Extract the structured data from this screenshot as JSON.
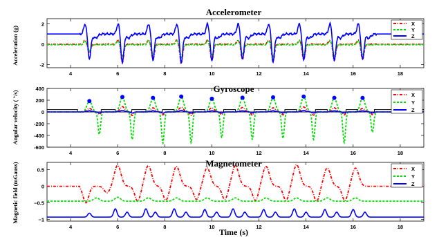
{
  "colors": {
    "x": "#ff0000",
    "y": "#00dd00",
    "z": "#0000ff",
    "axis": "#000000",
    "step": "#000000",
    "marker": "#0000ff"
  },
  "xlabel": "Time (s)",
  "chart_data": [
    {
      "type": "line",
      "title": "Accelerometer",
      "ylabel": "Acceleration (g)",
      "xlim": [
        3.0,
        19.0
      ],
      "ylim": [
        -2.3,
        2.5
      ],
      "xticks": [
        4,
        6,
        8,
        10,
        12,
        14,
        16,
        18
      ],
      "yticks": [
        -2,
        0,
        2
      ],
      "ytick_labels": [
        "-2",
        "0",
        "2"
      ],
      "legend": "top-right",
      "series": [
        {
          "name": "X",
          "style": "dash-dot",
          "baseline": 0.0,
          "active_range": [
            4.4,
            17.0
          ],
          "events": [
            {
              "t": 4.8,
              "d": -0.9
            },
            {
              "t": 6.2,
              "d": -1.8
            },
            {
              "t": 7.5,
              "d": -1.5
            },
            {
              "t": 8.7,
              "d": -1.8
            },
            {
              "t": 10.0,
              "d": -1.6
            },
            {
              "t": 11.3,
              "d": -1.5
            },
            {
              "t": 12.6,
              "d": -1.7
            },
            {
              "t": 13.9,
              "d": -1.5
            },
            {
              "t": 15.2,
              "d": -1.6
            },
            {
              "t": 16.4,
              "d": -1.5
            }
          ]
        },
        {
          "name": "Y",
          "style": "dashed",
          "baseline": -0.05,
          "active_range": [
            4.4,
            17.0
          ],
          "events": [
            {
              "t": 4.8,
              "d": -0.6
            },
            {
              "t": 6.2,
              "d": -1.2
            },
            {
              "t": 7.5,
              "d": -1.0
            },
            {
              "t": 8.7,
              "d": -1.2
            },
            {
              "t": 10.0,
              "d": -1.1
            },
            {
              "t": 11.3,
              "d": -1.0
            },
            {
              "t": 12.6,
              "d": -1.1
            },
            {
              "t": 13.9,
              "d": -1.0
            },
            {
              "t": 15.2,
              "d": -1.1
            },
            {
              "t": 16.4,
              "d": -1.0
            }
          ]
        },
        {
          "name": "Z",
          "style": "solid",
          "baseline": 1.0,
          "active_range": [
            4.4,
            17.0
          ],
          "events": [
            {
              "t": 4.8,
              "d": -2.4
            },
            {
              "t": 6.2,
              "d": -2.8
            },
            {
              "t": 7.5,
              "d": -2.5
            },
            {
              "t": 8.7,
              "d": -2.8
            },
            {
              "t": 10.0,
              "d": -2.6
            },
            {
              "t": 11.3,
              "d": -2.5
            },
            {
              "t": 12.6,
              "d": -2.7
            },
            {
              "t": 13.9,
              "d": -2.5
            },
            {
              "t": 15.2,
              "d": -2.6
            },
            {
              "t": 16.4,
              "d": -2.5
            }
          ]
        }
      ]
    },
    {
      "type": "line",
      "title": "Gyroscope",
      "ylabel": "Angular velocity ( °/s)",
      "xlim": [
        3.0,
        19.0
      ],
      "ylim": [
        -600,
        400
      ],
      "xticks": [
        4,
        6,
        8,
        10,
        12,
        14,
        16,
        18
      ],
      "yticks": [
        -600,
        -400,
        -200,
        0,
        200,
        400
      ],
      "ytick_labels": [
        "-600",
        "-400",
        "-200",
        "0",
        "200",
        "400"
      ],
      "legend": "top-right",
      "stance_step": {
        "baseline": 0,
        "high": 40,
        "intervals": [
          [
            3.0,
            4.3
          ],
          [
            5.3,
            5.9
          ],
          [
            6.6,
            7.2
          ],
          [
            7.9,
            8.4
          ],
          [
            9.2,
            9.7
          ],
          [
            10.5,
            11.0
          ],
          [
            11.8,
            12.3
          ],
          [
            13.1,
            13.6
          ],
          [
            14.4,
            14.9
          ],
          [
            15.7,
            16.2
          ],
          [
            16.9,
            19.0
          ]
        ]
      },
      "peak_markers": {
        "x": [
          4.8,
          6.2,
          7.5,
          8.7,
          10.0,
          11.3,
          12.6,
          13.9,
          15.2,
          16.4
        ],
        "y": [
          185,
          255,
          240,
          262,
          225,
          242,
          248,
          262,
          240,
          238
        ]
      },
      "series": [
        {
          "name": "X",
          "style": "dash-dot",
          "baseline": 0,
          "active_range": [
            4.4,
            17.0
          ],
          "events": [
            {
              "t": 4.8,
              "up": 60,
              "dn": -40
            },
            {
              "t": 6.2,
              "up": 90,
              "dn": -60
            },
            {
              "t": 7.5,
              "up": 70,
              "dn": -50
            },
            {
              "t": 8.7,
              "up": 80,
              "dn": -60
            },
            {
              "t": 10.0,
              "up": 70,
              "dn": -50
            },
            {
              "t": 11.3,
              "up": 75,
              "dn": -55
            },
            {
              "t": 12.6,
              "up": 70,
              "dn": -50
            },
            {
              "t": 13.9,
              "up": 85,
              "dn": -55
            },
            {
              "t": 15.2,
              "up": 70,
              "dn": -50
            },
            {
              "t": 16.4,
              "up": 60,
              "dn": -45
            }
          ]
        },
        {
          "name": "Y",
          "style": "dashed",
          "baseline": 0,
          "active_range": [
            4.4,
            17.0
          ],
          "events": [
            {
              "t": 4.8,
              "up": 190,
              "dn": -380
            },
            {
              "t": 6.2,
              "up": 260,
              "dn": -470
            },
            {
              "t": 7.5,
              "up": 240,
              "dn": -530
            },
            {
              "t": 8.7,
              "up": 265,
              "dn": -520
            },
            {
              "t": 10.0,
              "up": 225,
              "dn": -440
            },
            {
              "t": 11.3,
              "up": 242,
              "dn": -470
            },
            {
              "t": 12.6,
              "up": 250,
              "dn": -450
            },
            {
              "t": 13.9,
              "up": 265,
              "dn": -470
            },
            {
              "t": 15.2,
              "up": 240,
              "dn": -520
            },
            {
              "t": 16.4,
              "up": 240,
              "dn": -350
            }
          ]
        },
        {
          "name": "Z",
          "style": "solid",
          "baseline": 0,
          "active_range": [
            4.4,
            17.0
          ],
          "events": [
            {
              "t": 4.8,
              "up": 20,
              "dn": -20
            },
            {
              "t": 6.2,
              "up": 25,
              "dn": -20
            },
            {
              "t": 7.5,
              "up": 20,
              "dn": -20
            },
            {
              "t": 8.7,
              "up": 25,
              "dn": -20
            },
            {
              "t": 10.0,
              "up": 20,
              "dn": -20
            },
            {
              "t": 11.3,
              "up": 20,
              "dn": -20
            },
            {
              "t": 12.6,
              "up": 20,
              "dn": -20
            },
            {
              "t": 13.9,
              "up": 25,
              "dn": -20
            },
            {
              "t": 15.2,
              "up": 20,
              "dn": -20
            },
            {
              "t": 16.4,
              "up": 20,
              "dn": -20
            }
          ]
        }
      ]
    },
    {
      "type": "line",
      "title": "Magnetometer",
      "ylabel": "Magnetic field (mGauss)",
      "xlim": [
        3.0,
        19.0
      ],
      "ylim": [
        -1.05,
        0.72
      ],
      "xticks": [
        4,
        6,
        8,
        10,
        12,
        14,
        16,
        18
      ],
      "yticks": [
        -1,
        -0.5,
        0,
        0.5
      ],
      "ytick_labels": [
        "−1",
        "−0.5",
        "0",
        "0.5"
      ],
      "legend": "top-right",
      "series": [
        {
          "name": "X",
          "style": "dash-dot",
          "baseline": 0.0,
          "active_range": [
            4.4,
            17.0
          ],
          "events": [
            {
              "t": 5.1,
              "dip": -0.5,
              "peak": 0.0
            },
            {
              "t": 6.0,
              "dip": -0.2,
              "peak": 0.63
            },
            {
              "t": 7.3,
              "dip": -0.45,
              "peak": 0.62
            },
            {
              "t": 8.5,
              "dip": -0.42,
              "peak": 0.6
            },
            {
              "t": 9.8,
              "dip": -0.4,
              "peak": 0.55
            },
            {
              "t": 11.0,
              "dip": -0.4,
              "peak": 0.62
            },
            {
              "t": 12.3,
              "dip": -0.43,
              "peak": 0.6
            },
            {
              "t": 13.6,
              "dip": -0.43,
              "peak": 0.65
            },
            {
              "t": 14.9,
              "dip": -0.45,
              "peak": 0.55
            },
            {
              "t": 16.1,
              "dip": -0.43,
              "peak": 0.55
            }
          ]
        },
        {
          "name": "Y",
          "style": "dashed",
          "baseline": -0.45,
          "active_range": [
            4.4,
            17.0
          ],
          "events": [
            {
              "t": 5.1,
              "up": 0.1
            },
            {
              "t": 6.0,
              "up": 0.12
            },
            {
              "t": 7.3,
              "up": 0.1
            },
            {
              "t": 8.5,
              "up": 0.1
            },
            {
              "t": 9.8,
              "up": 0.1
            },
            {
              "t": 11.0,
              "up": 0.1
            },
            {
              "t": 12.3,
              "up": 0.1
            },
            {
              "t": 13.6,
              "up": 0.1
            },
            {
              "t": 14.9,
              "up": 0.1
            },
            {
              "t": 16.1,
              "up": 0.1
            }
          ]
        },
        {
          "name": "Z",
          "style": "solid",
          "baseline": -0.93,
          "active_range": [
            4.4,
            17.0
          ],
          "events": [
            {
              "t": 4.8,
              "up": 0.12
            },
            {
              "t": 5.9,
              "up": 0.25
            },
            {
              "t": 6.4,
              "up": 0.15
            },
            {
              "t": 7.2,
              "up": 0.25
            },
            {
              "t": 7.6,
              "up": 0.15
            },
            {
              "t": 8.4,
              "up": 0.25
            },
            {
              "t": 8.9,
              "up": 0.15
            },
            {
              "t": 9.7,
              "up": 0.23
            },
            {
              "t": 10.2,
              "up": 0.15
            },
            {
              "t": 10.9,
              "up": 0.25
            },
            {
              "t": 11.4,
              "up": 0.15
            },
            {
              "t": 12.2,
              "up": 0.23
            },
            {
              "t": 12.7,
              "up": 0.15
            },
            {
              "t": 13.5,
              "up": 0.25
            },
            {
              "t": 14.0,
              "up": 0.15
            },
            {
              "t": 14.8,
              "up": 0.23
            },
            {
              "t": 15.3,
              "up": 0.15
            },
            {
              "t": 16.0,
              "up": 0.23
            },
            {
              "t": 16.5,
              "up": 0.15
            }
          ]
        }
      ]
    }
  ]
}
